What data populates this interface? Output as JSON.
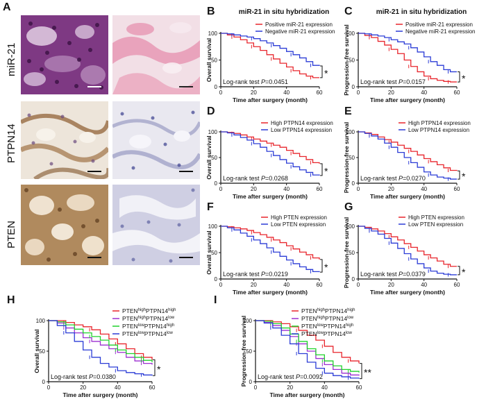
{
  "panel_labels": {
    "A": "A",
    "B": "B",
    "C": "C",
    "D": "D",
    "E": "E",
    "F": "F",
    "G": "G",
    "H": "H",
    "I": "I"
  },
  "micrographs": {
    "row_labels": [
      "miR-21",
      "PTPN14",
      "PTEN"
    ]
  },
  "colors": {
    "red": "#e8242b",
    "blue": "#2a3bd6",
    "purple": "#9c2fd0",
    "green": "#1fd12b",
    "axis": "#111111"
  },
  "chart_data": [
    {
      "id": "B",
      "type": "line",
      "title": "miR-21 in situ hybridization",
      "xlabel": "Time after surgery (month)",
      "ylabel": "Overall survival",
      "xlim": [
        0,
        60
      ],
      "ylim": [
        0,
        100
      ],
      "xticks": [
        "0",
        "20",
        "40",
        "60"
      ],
      "yticks": [
        "0",
        "50",
        "100"
      ],
      "legend": "top-right",
      "annotation": "Log-rank test P=0.0451",
      "significance": "*",
      "series": [
        {
          "name": "Positive miR-21 expression",
          "color": "red",
          "x": [
            0,
            4,
            8,
            12,
            16,
            20,
            24,
            28,
            32,
            36,
            40,
            44,
            48,
            52,
            56,
            60
          ],
          "y": [
            100,
            97,
            93,
            88,
            82,
            75,
            68,
            60,
            52,
            44,
            37,
            30,
            24,
            20,
            17,
            17
          ]
        },
        {
          "name": "Negative miR-21 expression",
          "color": "blue",
          "x": [
            0,
            4,
            8,
            12,
            16,
            20,
            24,
            28,
            32,
            36,
            40,
            44,
            48,
            52,
            56,
            60
          ],
          "y": [
            100,
            99,
            97,
            95,
            93,
            90,
            86,
            82,
            77,
            72,
            66,
            60,
            54,
            47,
            40,
            39
          ]
        }
      ]
    },
    {
      "id": "C",
      "type": "line",
      "title": "miR-21 in situ hybridization",
      "xlabel": "Time after surgery (month)",
      "ylabel": "Progression-free survival",
      "xlim": [
        0,
        60
      ],
      "ylim": [
        0,
        100
      ],
      "xticks": [
        "0",
        "20",
        "40",
        "60"
      ],
      "yticks": [
        "0",
        "50",
        "100"
      ],
      "legend": "top-right",
      "annotation": "Log-rank test P=0.0157",
      "significance": "*",
      "series": [
        {
          "name": "Positive miR-21 expression",
          "color": "red",
          "x": [
            0,
            4,
            8,
            12,
            16,
            20,
            24,
            28,
            32,
            36,
            40,
            44,
            48,
            52,
            56,
            60
          ],
          "y": [
            100,
            96,
            92,
            85,
            78,
            70,
            62,
            50,
            38,
            28,
            20,
            15,
            12,
            10,
            9,
            9
          ]
        },
        {
          "name": "Negative miR-21 expression",
          "color": "blue",
          "x": [
            0,
            4,
            8,
            12,
            16,
            20,
            24,
            28,
            32,
            36,
            40,
            44,
            48,
            52,
            56,
            60
          ],
          "y": [
            100,
            99,
            97,
            95,
            92,
            88,
            84,
            80,
            73,
            65,
            56,
            47,
            40,
            32,
            28,
            28
          ]
        }
      ]
    },
    {
      "id": "D",
      "type": "line",
      "xlabel": "Time after surgery (month)",
      "ylabel": "Overall survival",
      "xlim": [
        0,
        60
      ],
      "ylim": [
        0,
        100
      ],
      "xticks": [
        "0",
        "20",
        "40",
        "60"
      ],
      "yticks": [
        "0",
        "50",
        "100"
      ],
      "legend": "top-right",
      "annotation": "Log-rank test P=0.0268",
      "significance": "*",
      "series": [
        {
          "name": "High PTPN14 expression",
          "color": "red",
          "x": [
            0,
            4,
            8,
            12,
            16,
            20,
            24,
            28,
            32,
            36,
            40,
            44,
            48,
            52,
            56,
            60
          ],
          "y": [
            100,
            99,
            97,
            94,
            90,
            86,
            82,
            78,
            74,
            70,
            64,
            58,
            52,
            46,
            40,
            38
          ]
        },
        {
          "name": "Low PTPN14 expression",
          "color": "blue",
          "x": [
            0,
            4,
            8,
            12,
            16,
            20,
            24,
            28,
            32,
            36,
            40,
            44,
            48,
            52,
            56,
            60
          ],
          "y": [
            100,
            98,
            94,
            89,
            84,
            77,
            70,
            62,
            54,
            46,
            39,
            32,
            26,
            21,
            16,
            15
          ]
        }
      ]
    },
    {
      "id": "E",
      "type": "line",
      "xlabel": "Time after surgery (month)",
      "ylabel": "Progression-free survival",
      "xlim": [
        0,
        60
      ],
      "ylim": [
        0,
        100
      ],
      "xticks": [
        "0",
        "20",
        "40",
        "60"
      ],
      "yticks": [
        "0",
        "50",
        "100"
      ],
      "legend": "top-right",
      "annotation": "Log-rank test P=0.0270",
      "significance": "*",
      "series": [
        {
          "name": "High PTPN14 expression",
          "color": "red",
          "x": [
            0,
            4,
            8,
            12,
            16,
            20,
            24,
            28,
            32,
            36,
            40,
            44,
            48,
            52,
            56,
            60
          ],
          "y": [
            100,
            98,
            95,
            90,
            85,
            80,
            74,
            68,
            62,
            55,
            48,
            42,
            36,
            30,
            25,
            24
          ]
        },
        {
          "name": "Low PTPN14 expression",
          "color": "blue",
          "x": [
            0,
            4,
            8,
            12,
            16,
            20,
            24,
            28,
            32,
            36,
            40,
            44,
            48,
            52,
            56,
            60
          ],
          "y": [
            100,
            97,
            92,
            86,
            78,
            70,
            60,
            50,
            40,
            31,
            22,
            16,
            12,
            10,
            8,
            8
          ]
        }
      ]
    },
    {
      "id": "F",
      "type": "line",
      "xlabel": "Time after surgery (month)",
      "ylabel": "Overall survival",
      "xlim": [
        0,
        60
      ],
      "ylim": [
        0,
        100
      ],
      "xticks": [
        "0",
        "20",
        "40",
        "60"
      ],
      "yticks": [
        "0",
        "50",
        "100"
      ],
      "legend": "top-right",
      "annotation": "Log-rank test P=0.0219",
      "significance": "*",
      "series": [
        {
          "name": "High PTEN expression",
          "color": "red",
          "x": [
            0,
            4,
            8,
            12,
            16,
            20,
            24,
            28,
            32,
            36,
            40,
            44,
            48,
            52,
            56,
            60
          ],
          "y": [
            100,
            99,
            97,
            95,
            92,
            88,
            84,
            79,
            74,
            69,
            63,
            57,
            51,
            46,
            40,
            37
          ]
        },
        {
          "name": "Low PTEN expression",
          "color": "blue",
          "x": [
            0,
            4,
            8,
            12,
            16,
            20,
            24,
            28,
            32,
            36,
            40,
            44,
            48,
            52,
            56,
            60
          ],
          "y": [
            100,
            97,
            93,
            87,
            81,
            74,
            67,
            59,
            51,
            43,
            36,
            29,
            23,
            18,
            14,
            13
          ]
        }
      ]
    },
    {
      "id": "G",
      "type": "line",
      "xlabel": "Time after surgery (month)",
      "ylabel": "Progression-free survival",
      "xlim": [
        0,
        60
      ],
      "ylim": [
        0,
        100
      ],
      "xticks": [
        "0",
        "20",
        "40",
        "60"
      ],
      "yticks": [
        "0",
        "50",
        "100"
      ],
      "legend": "top-right",
      "annotation": "Log-rank test P=0.0379",
      "significance": "*",
      "series": [
        {
          "name": "High PTEN expression",
          "color": "red",
          "x": [
            0,
            4,
            8,
            12,
            16,
            20,
            24,
            28,
            32,
            36,
            40,
            44,
            48,
            52,
            56,
            60
          ],
          "y": [
            100,
            98,
            95,
            91,
            86,
            80,
            74,
            67,
            60,
            53,
            46,
            40,
            34,
            28,
            24,
            24
          ]
        },
        {
          "name": "Low PTEN expression",
          "color": "blue",
          "x": [
            0,
            4,
            8,
            12,
            16,
            20,
            24,
            28,
            32,
            36,
            40,
            44,
            48,
            52,
            56,
            60
          ],
          "y": [
            100,
            96,
            91,
            85,
            77,
            68,
            58,
            48,
            38,
            29,
            21,
            15,
            11,
            9,
            8,
            8
          ]
        }
      ]
    },
    {
      "id": "H",
      "type": "line",
      "xlabel": "Time after surgery (month)",
      "ylabel": "Overall survival",
      "xlim": [
        0,
        60
      ],
      "ylim": [
        0,
        100
      ],
      "xticks": [
        "0",
        "20",
        "40",
        "60"
      ],
      "yticks": [
        "0",
        "50",
        "100"
      ],
      "legend": "top-right",
      "annotation": "Log-rank test P=0.0380",
      "significance": "*",
      "series": [
        {
          "name": "PTEN high PTPN14 high",
          "gene1": "PTEN",
          "sup1": "high",
          "gene2": "PTPN14",
          "sup2": "high",
          "color": "red",
          "x": [
            0,
            5,
            10,
            15,
            20,
            25,
            30,
            35,
            40,
            45,
            50,
            55,
            60
          ],
          "y": [
            100,
            100,
            97,
            93,
            90,
            85,
            78,
            70,
            62,
            54,
            46,
            40,
            36
          ]
        },
        {
          "name": "PTEN high PTPN14 low",
          "gene1": "PTEN",
          "sup1": "high",
          "gene2": "PTPN14",
          "sup2": "low",
          "color": "purple",
          "x": [
            0,
            5,
            10,
            15,
            20,
            25,
            30,
            35,
            40,
            45,
            50,
            55,
            60
          ],
          "y": [
            100,
            96,
            88,
            80,
            72,
            66,
            60,
            54,
            48,
            40,
            34,
            30,
            28
          ]
        },
        {
          "name": "PTEN low PTPN14 high",
          "gene1": "PTEN",
          "sup1": "low",
          "gene2": "PTPN14",
          "sup2": "high",
          "color": "green",
          "x": [
            0,
            5,
            10,
            15,
            20,
            25,
            30,
            35,
            40,
            45,
            50,
            55,
            60
          ],
          "y": [
            100,
            98,
            93,
            86,
            80,
            74,
            68,
            60,
            52,
            46,
            40,
            35,
            32
          ]
        },
        {
          "name": "PTEN low PTPN14 low",
          "gene1": "PTEN",
          "sup1": "low",
          "gene2": "PTPN14",
          "sup2": "low",
          "color": "blue",
          "x": [
            0,
            5,
            10,
            15,
            20,
            25,
            30,
            35,
            40,
            45,
            50,
            55,
            60
          ],
          "y": [
            100,
            92,
            80,
            66,
            52,
            40,
            30,
            24,
            18,
            15,
            13,
            11,
            10
          ]
        }
      ]
    },
    {
      "id": "I",
      "type": "line",
      "xlabel": "Time after surgery (month)",
      "ylabel": "Progression-free survival",
      "xlim": [
        0,
        60
      ],
      "ylim": [
        0,
        100
      ],
      "xticks": [
        "0",
        "20",
        "40",
        "60"
      ],
      "yticks": [
        "0",
        "50",
        "100"
      ],
      "legend": "top-right",
      "annotation": "Log-rank test P=0.0092",
      "significance": "**",
      "series": [
        {
          "name": "PTEN high PTPN14 high",
          "gene1": "PTEN",
          "sup1": "high",
          "gene2": "PTPN14",
          "sup2": "high",
          "color": "red",
          "x": [
            0,
            5,
            10,
            15,
            20,
            25,
            30,
            35,
            40,
            45,
            50,
            55,
            60
          ],
          "y": [
            100,
            100,
            98,
            95,
            90,
            84,
            76,
            68,
            58,
            48,
            40,
            34,
            30
          ]
        },
        {
          "name": "PTEN high PTPN14 low",
          "gene1": "PTEN",
          "sup1": "high",
          "gene2": "PTPN14",
          "sup2": "low",
          "color": "purple",
          "x": [
            0,
            5,
            10,
            15,
            20,
            25,
            30,
            35,
            40,
            45,
            50,
            55,
            60
          ],
          "y": [
            100,
            97,
            92,
            84,
            74,
            62,
            50,
            38,
            28,
            20,
            14,
            11,
            10
          ]
        },
        {
          "name": "PTEN low PTPN14 high",
          "gene1": "PTEN",
          "sup1": "low",
          "gene2": "PTPN14",
          "sup2": "high",
          "color": "green",
          "x": [
            0,
            5,
            10,
            15,
            20,
            25,
            30,
            35,
            40,
            45,
            50,
            55,
            60
          ],
          "y": [
            100,
            99,
            95,
            88,
            78,
            66,
            54,
            44,
            34,
            26,
            20,
            17,
            15
          ]
        },
        {
          "name": "PTEN low PTPN14 low",
          "gene1": "PTEN",
          "sup1": "low",
          "gene2": "PTPN14",
          "sup2": "low",
          "color": "blue",
          "x": [
            0,
            5,
            10,
            15,
            20,
            25,
            30,
            35,
            40,
            45,
            50,
            55,
            60
          ],
          "y": [
            100,
            96,
            88,
            76,
            62,
            46,
            32,
            22,
            14,
            10,
            8,
            6,
            5
          ]
        }
      ]
    }
  ]
}
